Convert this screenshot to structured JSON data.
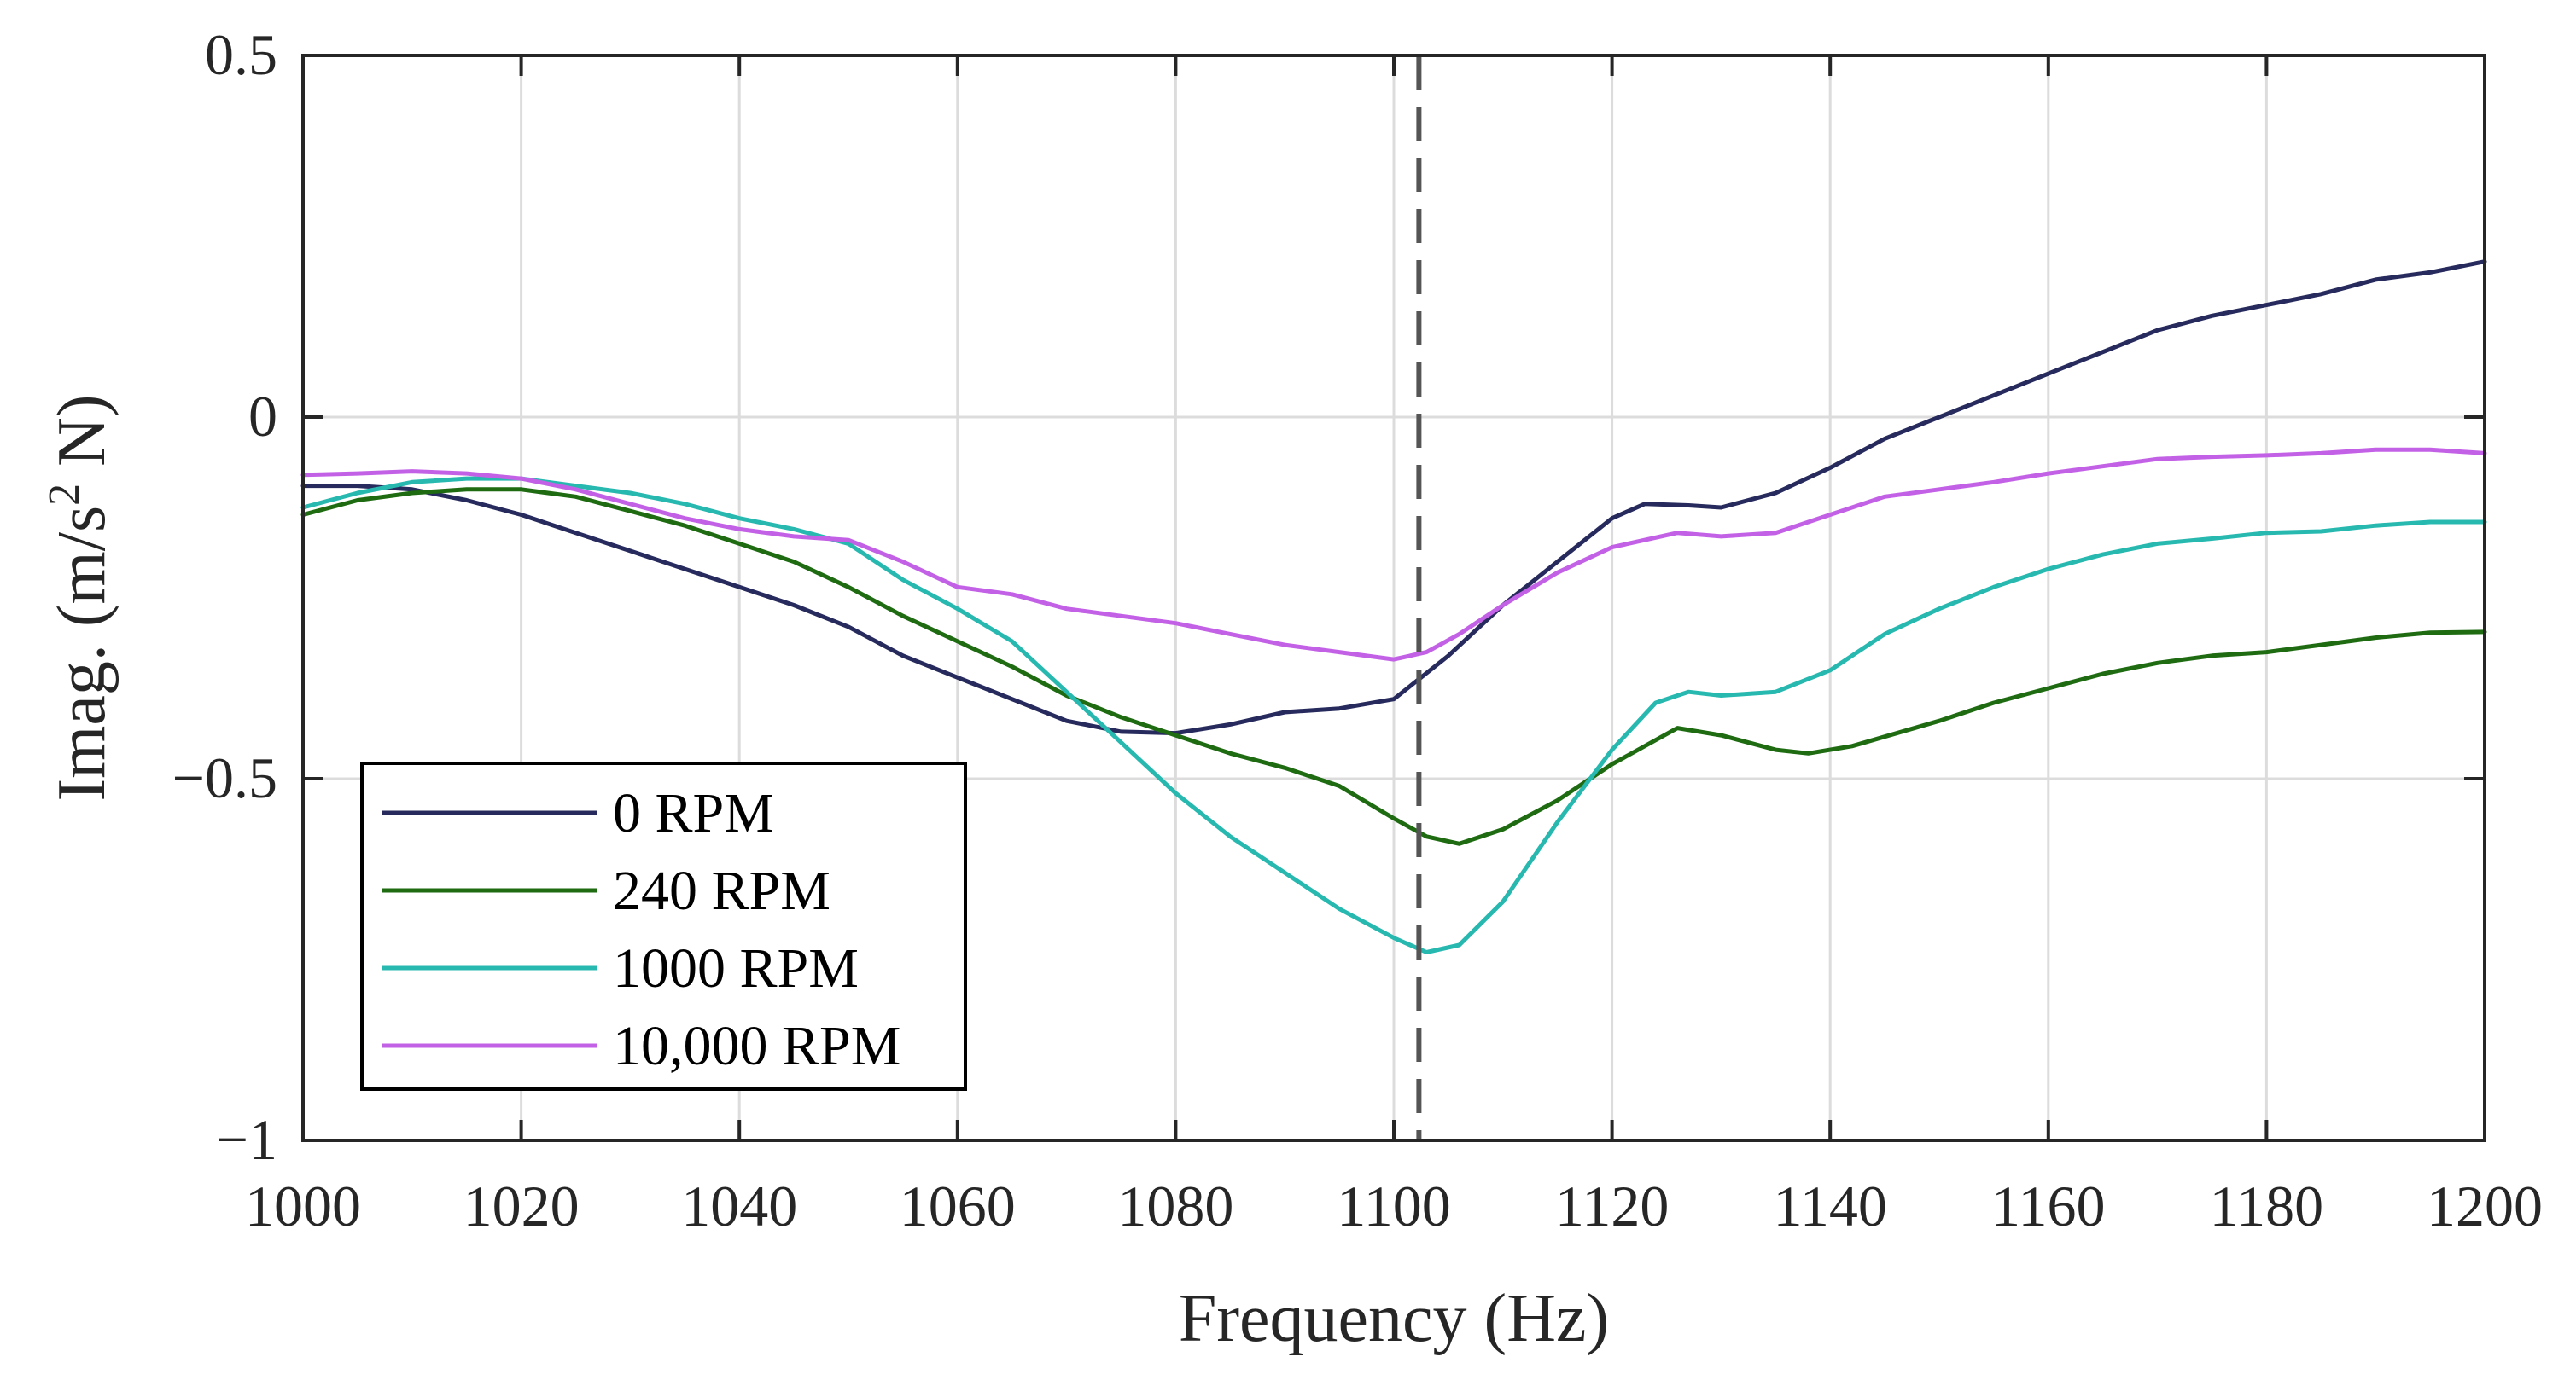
{
  "chart_data": {
    "type": "line",
    "title": "",
    "xlabel": "Frequency (Hz)",
    "ylabel_main": "Imag. (m/s",
    "ylabel_sup": "2",
    "ylabel_tail": " N)",
    "xlim": [
      1000,
      1200
    ],
    "ylim": [
      -1,
      0.5
    ],
    "x_ticks": [
      1000,
      1020,
      1040,
      1060,
      1080,
      1100,
      1120,
      1140,
      1160,
      1180,
      1200
    ],
    "x_tick_labels": [
      "1000",
      "1020",
      "1040",
      "1060",
      "1080",
      "1100",
      "1120",
      "1140",
      "1160",
      "1180",
      "1200"
    ],
    "y_ticks": [
      0.5,
      0,
      -0.5,
      -1
    ],
    "y_tick_labels": [
      "0.5",
      "0",
      "−0.5",
      "−1"
    ],
    "grid": true,
    "vline_x": 1102.3,
    "legend_position": "bottom-left",
    "series": [
      {
        "name": "0 RPM",
        "color": "#262a5c",
        "x": [
          1000,
          1005,
          1010,
          1015,
          1020,
          1025,
          1030,
          1035,
          1040,
          1045,
          1050,
          1055,
          1060,
          1065,
          1070,
          1075,
          1080,
          1085,
          1090,
          1095,
          1100,
          1105,
          1110,
          1115,
          1120,
          1123,
          1127,
          1130,
          1135,
          1140,
          1145,
          1150,
          1155,
          1160,
          1165,
          1170,
          1175,
          1180,
          1185,
          1190,
          1195,
          1200
        ],
        "y": [
          -0.095,
          -0.095,
          -0.1,
          -0.115,
          -0.135,
          -0.16,
          -0.185,
          -0.21,
          -0.235,
          -0.26,
          -0.29,
          -0.33,
          -0.36,
          -0.39,
          -0.42,
          -0.435,
          -0.437,
          -0.425,
          -0.408,
          -0.403,
          -0.39,
          -0.33,
          -0.26,
          -0.2,
          -0.14,
          -0.12,
          -0.122,
          -0.125,
          -0.105,
          -0.07,
          -0.03,
          0.0,
          0.03,
          0.06,
          0.09,
          0.12,
          0.14,
          0.155,
          0.17,
          0.19,
          0.2,
          0.215
        ]
      },
      {
        "name": "240 RPM",
        "color": "#1e6b12",
        "x": [
          1000,
          1005,
          1010,
          1015,
          1020,
          1025,
          1030,
          1035,
          1040,
          1045,
          1050,
          1055,
          1060,
          1065,
          1070,
          1075,
          1080,
          1085,
          1090,
          1095,
          1100,
          1103,
          1106,
          1110,
          1115,
          1120,
          1126,
          1130,
          1135,
          1138,
          1142,
          1150,
          1155,
          1160,
          1165,
          1170,
          1175,
          1180,
          1185,
          1190,
          1195,
          1200
        ],
        "y": [
          -0.135,
          -0.115,
          -0.105,
          -0.1,
          -0.1,
          -0.11,
          -0.13,
          -0.15,
          -0.175,
          -0.2,
          -0.235,
          -0.275,
          -0.31,
          -0.345,
          -0.385,
          -0.415,
          -0.44,
          -0.465,
          -0.485,
          -0.51,
          -0.555,
          -0.58,
          -0.59,
          -0.57,
          -0.53,
          -0.48,
          -0.43,
          -0.44,
          -0.46,
          -0.465,
          -0.455,
          -0.42,
          -0.395,
          -0.375,
          -0.355,
          -0.34,
          -0.33,
          -0.325,
          -0.315,
          -0.305,
          -0.298,
          -0.297
        ]
      },
      {
        "name": "1000 RPM",
        "color": "#27b8b0",
        "x": [
          1000,
          1005,
          1010,
          1015,
          1020,
          1025,
          1030,
          1035,
          1040,
          1045,
          1050,
          1055,
          1060,
          1065,
          1070,
          1075,
          1080,
          1085,
          1090,
          1095,
          1100,
          1103,
          1106,
          1110,
          1115,
          1120,
          1124,
          1127,
          1130,
          1135,
          1140,
          1145,
          1150,
          1155,
          1160,
          1165,
          1170,
          1175,
          1180,
          1185,
          1190,
          1195,
          1200
        ],
        "y": [
          -0.125,
          -0.105,
          -0.09,
          -0.085,
          -0.085,
          -0.095,
          -0.105,
          -0.12,
          -0.14,
          -0.155,
          -0.175,
          -0.225,
          -0.265,
          -0.31,
          -0.38,
          -0.45,
          -0.52,
          -0.58,
          -0.63,
          -0.68,
          -0.72,
          -0.74,
          -0.73,
          -0.67,
          -0.56,
          -0.46,
          -0.395,
          -0.38,
          -0.385,
          -0.38,
          -0.35,
          -0.3,
          -0.265,
          -0.235,
          -0.21,
          -0.19,
          -0.175,
          -0.168,
          -0.16,
          -0.158,
          -0.15,
          -0.145,
          -0.145
        ]
      },
      {
        "name": "10,000 RPM",
        "color": "#c361e6",
        "x": [
          1000,
          1005,
          1010,
          1015,
          1020,
          1025,
          1030,
          1035,
          1040,
          1045,
          1050,
          1055,
          1060,
          1065,
          1070,
          1075,
          1080,
          1085,
          1090,
          1095,
          1100,
          1103,
          1106,
          1110,
          1115,
          1120,
          1126,
          1130,
          1135,
          1140,
          1145,
          1150,
          1155,
          1160,
          1165,
          1170,
          1175,
          1180,
          1185,
          1190,
          1195,
          1200
        ],
        "y": [
          -0.08,
          -0.078,
          -0.075,
          -0.078,
          -0.085,
          -0.1,
          -0.12,
          -0.14,
          -0.155,
          -0.165,
          -0.17,
          -0.2,
          -0.235,
          -0.245,
          -0.265,
          -0.275,
          -0.285,
          -0.3,
          -0.315,
          -0.325,
          -0.335,
          -0.325,
          -0.3,
          -0.26,
          -0.215,
          -0.18,
          -0.16,
          -0.165,
          -0.16,
          -0.135,
          -0.11,
          -0.1,
          -0.09,
          -0.078,
          -0.068,
          -0.058,
          -0.055,
          -0.053,
          -0.05,
          -0.045,
          -0.045,
          -0.05
        ]
      }
    ]
  }
}
